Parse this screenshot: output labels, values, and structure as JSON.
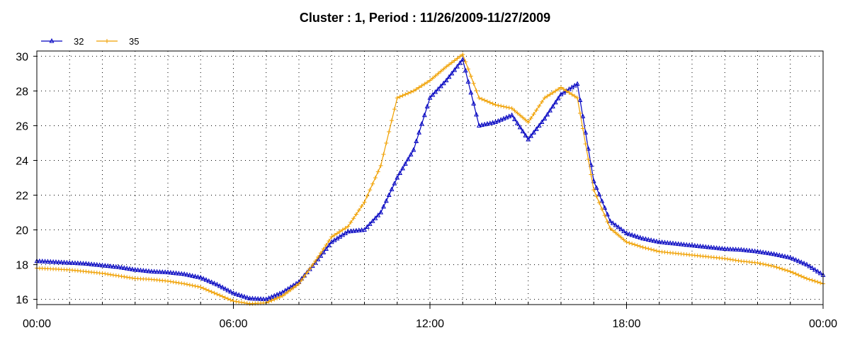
{
  "chart_data": {
    "type": "line",
    "title": "Cluster : 1, Period : 11/26/2009-11/27/2009",
    "xlabel": "",
    "ylabel": "",
    "x_ticks": [
      "00:00",
      "06:00",
      "12:00",
      "18:00",
      "00:00"
    ],
    "x_tick_hours": [
      0,
      6,
      12,
      18,
      24
    ],
    "xlim_hours": [
      0,
      24
    ],
    "ylim": [
      15.7,
      30.3
    ],
    "y_ticks": [
      16,
      18,
      20,
      22,
      24,
      26,
      28,
      30
    ],
    "grid": true,
    "legend": "top-left",
    "x_hours": [
      0,
      0.5,
      1,
      1.5,
      2,
      2.5,
      3,
      3.5,
      4,
      4.5,
      5,
      5.5,
      6,
      6.5,
      7,
      7.5,
      8,
      8.5,
      9,
      9.5,
      10,
      10.5,
      11,
      11.5,
      12,
      12.5,
      13,
      13.5,
      14,
      14.5,
      15,
      15.5,
      16,
      16.5,
      17,
      17.5,
      18,
      18.5,
      19,
      19.5,
      20,
      20.5,
      21,
      21.5,
      22,
      22.5,
      23,
      23.5,
      24
    ],
    "series": [
      {
        "name": "32",
        "color": "#0000c0",
        "marker": "triangle",
        "values": [
          18.2,
          18.15,
          18.1,
          18.05,
          17.95,
          17.85,
          17.7,
          17.6,
          17.55,
          17.45,
          17.25,
          16.85,
          16.35,
          16.05,
          16.0,
          16.4,
          17.0,
          18.1,
          19.3,
          19.9,
          20.0,
          21.0,
          23.0,
          24.6,
          27.6,
          28.6,
          29.8,
          26.0,
          26.2,
          26.6,
          25.2,
          26.4,
          27.8,
          28.4,
          22.8,
          20.5,
          19.8,
          19.5,
          19.3,
          19.2,
          19.1,
          19.0,
          18.9,
          18.85,
          18.75,
          18.6,
          18.4,
          18.0,
          17.4
        ]
      },
      {
        "name": "35",
        "color": "#f0a000",
        "marker": "plus",
        "values": [
          17.8,
          17.75,
          17.7,
          17.6,
          17.5,
          17.35,
          17.2,
          17.15,
          17.05,
          16.9,
          16.7,
          16.3,
          15.9,
          15.75,
          15.8,
          16.2,
          16.9,
          18.2,
          19.6,
          20.2,
          21.6,
          23.7,
          27.6,
          28.0,
          28.6,
          29.4,
          30.1,
          27.6,
          27.2,
          27.0,
          26.2,
          27.6,
          28.2,
          27.6,
          22.3,
          20.1,
          19.3,
          19.0,
          18.75,
          18.65,
          18.55,
          18.45,
          18.35,
          18.2,
          18.1,
          17.9,
          17.6,
          17.2,
          16.9
        ]
      }
    ]
  }
}
